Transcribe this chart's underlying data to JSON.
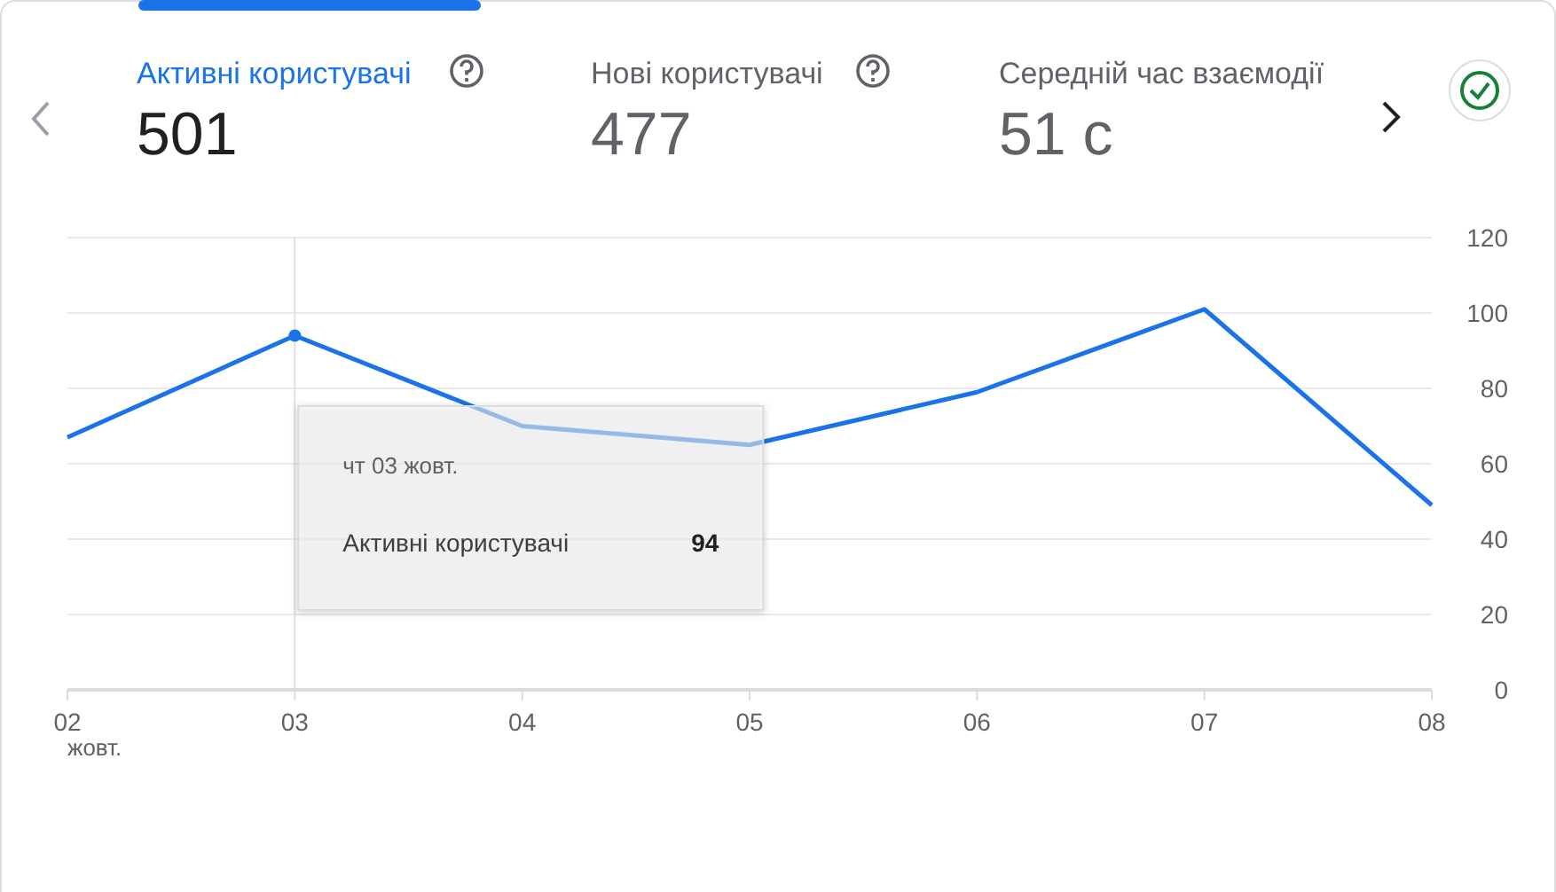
{
  "chart_data": {
    "type": "line",
    "title": "Активні користувачі",
    "annotations": [
      "501",
      "Нові користувачі",
      "477",
      "Середній час взаємодії",
      "51 с",
      "чт 03 жовт.",
      "94"
    ],
    "ref_lines": [
      {
        "axis": "x",
        "value": "03",
        "color": "#e0e0e0"
      }
    ],
    "categories": [
      "02",
      "03",
      "04",
      "05",
      "06",
      "07",
      "08"
    ],
    "xlabel": "жовт.",
    "series": [
      {
        "name": "Активні користувачі",
        "color": "#1a73e8",
        "values": [
          67,
          94,
          70,
          65,
          79,
          101,
          49
        ]
      }
    ],
    "ylim": [
      0,
      120
    ],
    "yticks": [
      0,
      20,
      40,
      60,
      80,
      100,
      120
    ],
    "grid": "y",
    "marker": "none",
    "line_style": "solid"
  }
}
